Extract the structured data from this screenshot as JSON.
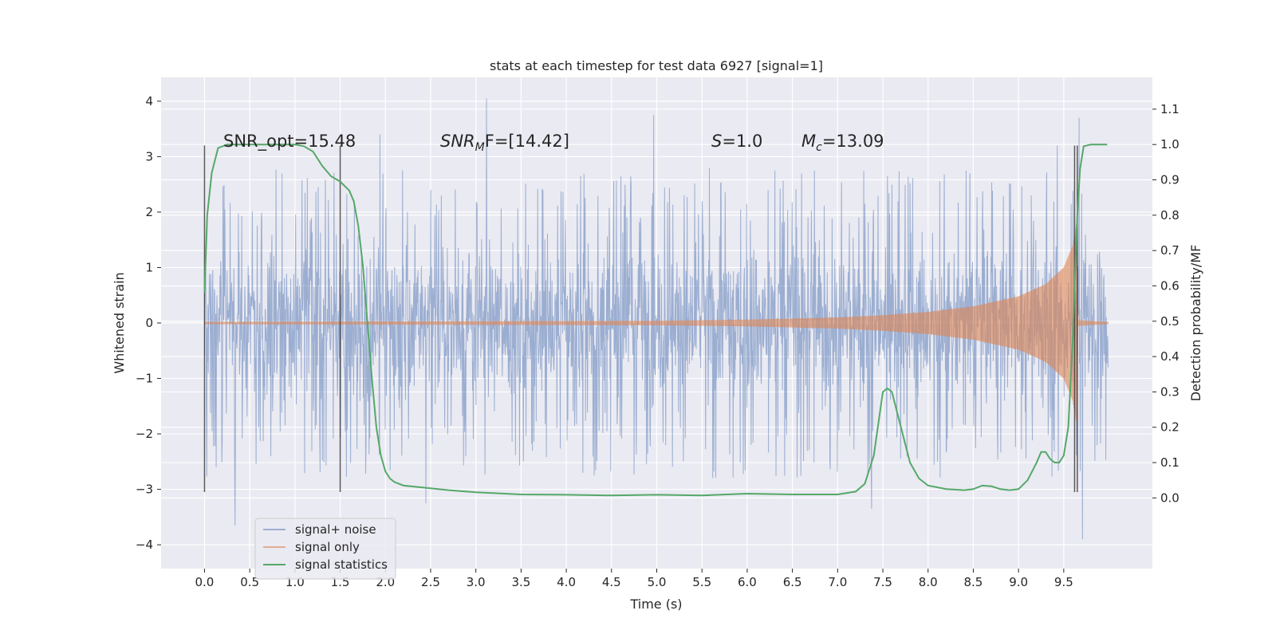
{
  "chart_data": {
    "type": "line",
    "title": "stats at each timestep for test data 6927 [signal=1]",
    "xlabel": "Time (s)",
    "ylabel": "Whitened strain",
    "y2label": "Detection probability/MF",
    "xlim": [
      -0.48,
      10.48
    ],
    "ylim": [
      -4.43,
      4.43
    ],
    "y2lim": [
      -0.2,
      1.19
    ],
    "xticks": [
      0.0,
      0.5,
      1.0,
      1.5,
      2.0,
      2.5,
      3.0,
      3.5,
      4.0,
      4.5,
      5.0,
      5.5,
      6.0,
      6.5,
      7.0,
      7.5,
      8.0,
      8.5,
      9.0,
      9.5
    ],
    "xtick_labels": [
      "0.0",
      "0.5",
      "1.0",
      "1.5",
      "2.0",
      "2.5",
      "3.0",
      "3.5",
      "4.0",
      "4.5",
      "5.0",
      "5.5",
      "6.0",
      "6.5",
      "7.0",
      "7.5",
      "8.0",
      "8.5",
      "9.0",
      "9.5"
    ],
    "yticks": [
      4,
      3,
      2,
      1,
      0,
      -1,
      -2,
      -3,
      -4
    ],
    "ytick_labels": [
      "4",
      "3",
      "2",
      "1",
      "0",
      "−1",
      "−2",
      "−3",
      "−4"
    ],
    "y2ticks": [
      1.1,
      1.0,
      0.9,
      0.8,
      0.7,
      0.6,
      0.5,
      0.4,
      0.3,
      0.2,
      0.1,
      0.0
    ],
    "y2tick_labels": [
      "1.1",
      "1.0",
      "0.9",
      "0.8",
      "0.7",
      "0.6",
      "0.5",
      "0.4",
      "0.3",
      "0.2",
      "0.1",
      "0.0"
    ],
    "grid": true,
    "legend_position": "lower-left",
    "series": [
      {
        "name": "signal+ noise",
        "color": "#4c72b0",
        "axis": "left",
        "style": "noise",
        "x_range": [
          0.0,
          9.99
        ],
        "typical_amplitude": 1.2,
        "peaks": [
          {
            "x": 0.34,
            "y": -3.65
          },
          {
            "x": 1.94,
            "y": 3.4
          },
          {
            "x": 2.45,
            "y": -3.25
          },
          {
            "x": 3.12,
            "y": 4.05
          },
          {
            "x": 4.97,
            "y": 3.75
          },
          {
            "x": 7.38,
            "y": -3.35
          },
          {
            "x": 9.43,
            "y": 3.2
          },
          {
            "x": 9.67,
            "y": 3.7
          },
          {
            "x": 9.71,
            "y": -3.9
          }
        ]
      },
      {
        "name": "signal only",
        "color": "#dd8452",
        "axis": "left",
        "style": "chirp",
        "x_range": [
          0.0,
          9.99
        ],
        "envelope": [
          [
            0.0,
            0.02
          ],
          [
            5.0,
            0.04
          ],
          [
            6.0,
            0.06
          ],
          [
            7.0,
            0.1
          ],
          [
            7.5,
            0.14
          ],
          [
            8.0,
            0.2
          ],
          [
            8.5,
            0.3
          ],
          [
            9.0,
            0.48
          ],
          [
            9.3,
            0.7
          ],
          [
            9.5,
            1.0
          ],
          [
            9.6,
            1.4
          ],
          [
            9.64,
            1.8
          ],
          [
            9.66,
            0.05
          ],
          [
            9.99,
            0.02
          ]
        ]
      },
      {
        "name": "signal statistics",
        "color": "#55a868",
        "axis": "right",
        "style": "line",
        "x": [
          0.0,
          0.03,
          0.08,
          0.15,
          0.25,
          0.4,
          0.6,
          0.8,
          1.0,
          1.1,
          1.2,
          1.3,
          1.4,
          1.5,
          1.6,
          1.65,
          1.7,
          1.75,
          1.8,
          1.85,
          1.9,
          1.95,
          2.0,
          2.05,
          2.1,
          2.2,
          2.4,
          2.7,
          3.0,
          3.5,
          4.0,
          4.5,
          5.0,
          5.5,
          6.0,
          6.5,
          7.0,
          7.2,
          7.3,
          7.4,
          7.5,
          7.55,
          7.6,
          7.7,
          7.8,
          7.9,
          8.0,
          8.2,
          8.4,
          8.5,
          8.6,
          8.7,
          8.8,
          8.9,
          9.0,
          9.1,
          9.2,
          9.25,
          9.3,
          9.35,
          9.4,
          9.45,
          9.5,
          9.55,
          9.6,
          9.62,
          9.65,
          9.68,
          9.72,
          9.8,
          9.9,
          9.98
        ],
        "values": [
          0.58,
          0.8,
          0.92,
          0.99,
          1.0,
          1.0,
          1.0,
          1.0,
          1.0,
          0.995,
          0.98,
          0.94,
          0.91,
          0.895,
          0.87,
          0.84,
          0.77,
          0.66,
          0.5,
          0.34,
          0.2,
          0.12,
          0.075,
          0.055,
          0.045,
          0.035,
          0.03,
          0.022,
          0.016,
          0.01,
          0.009,
          0.007,
          0.009,
          0.007,
          0.012,
          0.01,
          0.01,
          0.018,
          0.04,
          0.12,
          0.3,
          0.31,
          0.3,
          0.2,
          0.1,
          0.055,
          0.035,
          0.025,
          0.022,
          0.025,
          0.035,
          0.033,
          0.025,
          0.022,
          0.025,
          0.05,
          0.1,
          0.13,
          0.13,
          0.11,
          0.1,
          0.1,
          0.12,
          0.2,
          0.45,
          0.6,
          0.8,
          0.93,
          0.995,
          1.0,
          1.0,
          1.0
        ]
      }
    ],
    "vertical_markers": [
      0.0,
      1.5,
      9.62,
      9.65
    ],
    "marker_y_range": [
      -3.05,
      3.2
    ]
  },
  "annotations": {
    "snr_opt": "SNR_opt=15.48",
    "snr_mf_main": "SNR",
    "snr_mf_sub": "M",
    "snr_mf_rest": "F=[14.42]",
    "s_italic": "S",
    "s_rest": "=1.0",
    "mc_main": "M",
    "mc_sub": "c",
    "mc_rest": "=13.09"
  },
  "colors": {
    "background": "#ffffff",
    "axes_face": "#eaeaf2",
    "grid": "#ffffff",
    "text": "#262626",
    "marker": "#333333"
  }
}
